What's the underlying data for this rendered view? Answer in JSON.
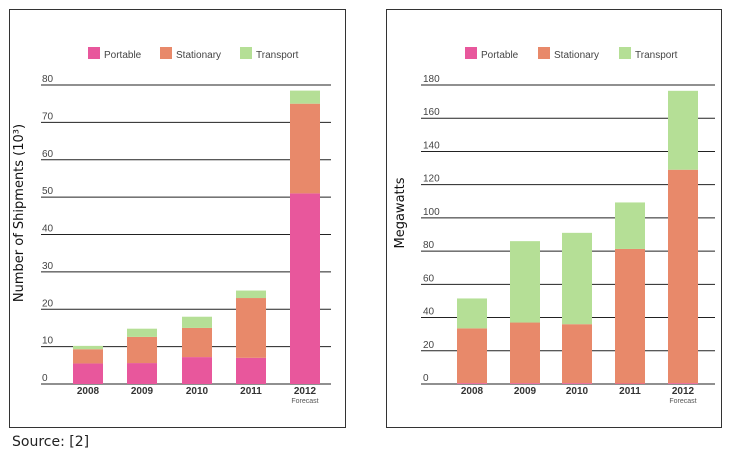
{
  "source": "Source: [2]",
  "colors": {
    "Portable": "#e8579c",
    "Stationary": "#e8896a",
    "Transport": "#b5df96"
  },
  "chart_data": [
    {
      "type": "bar",
      "stacked": true,
      "ylabel": "Number of Shipments (10³)",
      "ylim": [
        0,
        80
      ],
      "yticks": [
        "0",
        "10",
        "20",
        "30",
        "40",
        "50",
        "60",
        "70",
        "80"
      ],
      "categories": [
        "2008",
        "2009",
        "2010",
        "2011",
        "2012"
      ],
      "category_notes": [
        "",
        "",
        "",
        "",
        "Forecast"
      ],
      "grid": true,
      "legend": "top",
      "series": [
        {
          "name": "Portable",
          "values": [
            5.5,
            5.6,
            7.2,
            7.0,
            51.0
          ]
        },
        {
          "name": "Stationary",
          "values": [
            3.8,
            7.0,
            7.8,
            16.0,
            24.0
          ]
        },
        {
          "name": "Transport",
          "values": [
            0.9,
            2.2,
            3.0,
            2.0,
            3.5
          ]
        }
      ]
    },
    {
      "type": "bar",
      "stacked": true,
      "ylabel": "Megawatts",
      "ylim": [
        0,
        180
      ],
      "yticks": [
        "0",
        "20",
        "40",
        "60",
        "80",
        "100",
        "120",
        "140",
        "160",
        "180"
      ],
      "categories": [
        "2008",
        "2009",
        "2010",
        "2011",
        "2012"
      ],
      "category_notes": [
        "",
        "",
        "",
        "",
        "Forecast"
      ],
      "grid": true,
      "legend": "top",
      "series": [
        {
          "name": "Portable",
          "values": [
            0.5,
            0.5,
            0.5,
            0.3,
            0.5
          ]
        },
        {
          "name": "Stationary",
          "values": [
            33,
            36.5,
            35.5,
            81,
            128.5
          ]
        },
        {
          "name": "Transport",
          "values": [
            18,
            49,
            55,
            28,
            47.5
          ]
        }
      ]
    }
  ]
}
